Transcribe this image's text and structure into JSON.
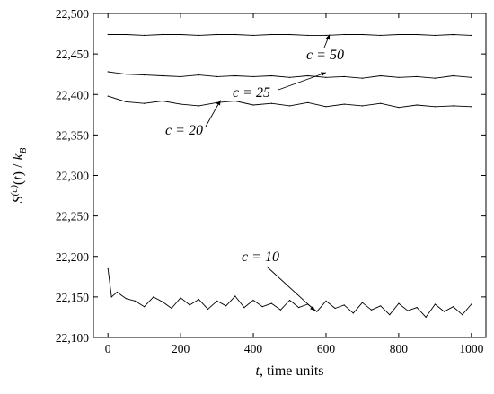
{
  "chart_data": {
    "type": "line",
    "xlabel": "t, time units",
    "ylabel": "S(c)(t) / kB",
    "xlim": [
      -40,
      1040
    ],
    "ylim": [
      22100,
      22500
    ],
    "xticks": [
      0,
      200,
      400,
      600,
      800,
      1000
    ],
    "yticks": [
      22100,
      22150,
      22200,
      22250,
      22300,
      22350,
      22400,
      22450,
      22500
    ],
    "ytick_labels": [
      "22,100",
      "22,150",
      "22,200",
      "22,250",
      "22,300",
      "22,350",
      "22,400",
      "22,450",
      "22,500"
    ],
    "grid": false,
    "legend": "none",
    "series_color": "#000000",
    "series": [
      {
        "label": "c = 50",
        "x": [
          0,
          50,
          100,
          150,
          200,
          250,
          300,
          350,
          400,
          450,
          500,
          550,
          600,
          650,
          700,
          750,
          800,
          850,
          900,
          950,
          1000
        ],
        "y": [
          22474,
          22474,
          22473,
          22474,
          22474,
          22473,
          22474,
          22474,
          22473,
          22474,
          22474,
          22473,
          22473,
          22474,
          22474,
          22473,
          22474,
          22474,
          22473,
          22474,
          22473
        ]
      },
      {
        "label": "c = 25",
        "x": [
          0,
          50,
          100,
          150,
          200,
          250,
          300,
          350,
          400,
          450,
          500,
          550,
          600,
          650,
          700,
          750,
          800,
          850,
          900,
          950,
          1000
        ],
        "y": [
          22428,
          22425,
          22424,
          22423,
          22422,
          22424,
          22422,
          22423,
          22422,
          22423,
          22421,
          22423,
          22421,
          22422,
          22420,
          22423,
          22421,
          22422,
          22420,
          22423,
          22421
        ]
      },
      {
        "label": "c = 20",
        "x": [
          0,
          50,
          100,
          150,
          200,
          250,
          300,
          350,
          400,
          450,
          500,
          550,
          600,
          650,
          700,
          750,
          800,
          850,
          900,
          950,
          1000
        ],
        "y": [
          22398,
          22391,
          22389,
          22392,
          22388,
          22386,
          22390,
          22392,
          22387,
          22389,
          22386,
          22390,
          22385,
          22388,
          22386,
          22389,
          22384,
          22387,
          22385,
          22386,
          22385
        ]
      },
      {
        "label": "c = 10",
        "x": [
          0,
          10,
          25,
          50,
          75,
          100,
          125,
          150,
          175,
          200,
          225,
          250,
          275,
          300,
          325,
          350,
          375,
          400,
          425,
          450,
          475,
          500,
          525,
          550,
          575,
          600,
          625,
          650,
          675,
          700,
          725,
          750,
          775,
          800,
          825,
          850,
          875,
          900,
          925,
          950,
          975,
          1000
        ],
        "y": [
          22185,
          22150,
          22156,
          22148,
          22145,
          22138,
          22150,
          22144,
          22136,
          22149,
          22140,
          22147,
          22135,
          22145,
          22139,
          22151,
          22137,
          22146,
          22138,
          22142,
          22134,
          22146,
          22137,
          22141,
          22132,
          22145,
          22136,
          22140,
          22130,
          22143,
          22134,
          22139,
          22128,
          22142,
          22133,
          22137,
          22125,
          22141,
          22132,
          22138,
          22128,
          22141
        ]
      }
    ],
    "annotations": [
      {
        "text": "c = 50",
        "target_x": 610,
        "target_y": 22474
      },
      {
        "text": "c = 25",
        "target_x": 600,
        "target_y": 22427
      },
      {
        "text": "c = 20",
        "target_x": 310,
        "target_y": 22393
      },
      {
        "text": "c = 10",
        "target_x": 570,
        "target_y": 22133
      }
    ]
  }
}
